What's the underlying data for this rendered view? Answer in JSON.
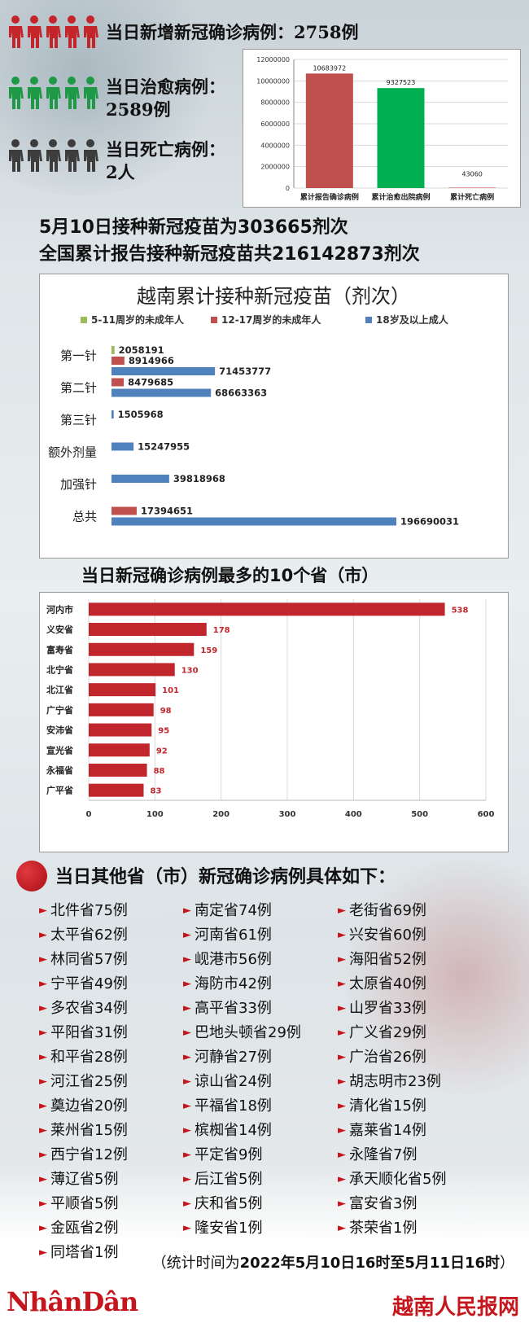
{
  "stats": {
    "new_cases": {
      "label": "当日新增新冠确诊病例：",
      "value": "2758例",
      "color": "#c4252b"
    },
    "recovered": {
      "label": "当日治愈病例：",
      "value": "2589例",
      "color": "#1e9a46"
    },
    "deaths": {
      "label": "当日死亡病例：",
      "value": "2人",
      "color": "#3d3d3d"
    }
  },
  "vaccine_headline": {
    "line1": "5月10日接种新冠疫苗为303665剂次",
    "line2": "全国累计报告接种新冠疫苗共216142873剂次"
  },
  "others": {
    "title": "当日其他省（市）新冠确诊病例具体如下：",
    "col1": [
      "北件省75例",
      "太平省62例",
      "林同省57例",
      "宁平省49例",
      "多农省34例",
      "平阳省31例",
      "和平省28例",
      "河江省25例",
      "奠边省20例",
      "莱州省15例",
      "西宁省12例",
      "薄辽省5例",
      "平顺省5例",
      "金瓯省2例",
      "同塔省1例"
    ],
    "col2": [
      "南定省74例",
      "河南省61例",
      "岘港市56例",
      "海防市42例",
      "高平省33例",
      "巴地头顿省29例",
      "河静省27例",
      "谅山省24例",
      "平福省18例",
      "槟椥省14例",
      "平定省9例",
      "后江省5例",
      "庆和省5例",
      "隆安省1例"
    ],
    "col3": [
      "老街省69例",
      "兴安省60例",
      "海阳省52例",
      "太原省40例",
      "山罗省33例",
      "广义省29例",
      "广治省26例",
      "胡志明市23例",
      "清化省15例",
      "嘉莱省14例",
      "永隆省7例",
      "承天顺化省5例",
      "富安省3例",
      "茶荣省1例"
    ],
    "marker": "►"
  },
  "stat_time": {
    "prefix": "（统计时间为",
    "value": "2022年5月10日16时至5月11日16时",
    "suffix": "）"
  },
  "footer": {
    "logo": "NhânDân",
    "right": "越南人民报网"
  },
  "chart_data": [
    {
      "type": "bar",
      "categories": [
        "累计报告确诊病例",
        "累计治愈出院病例",
        "累计死亡病例"
      ],
      "values": [
        10683972,
        9327523,
        43060
      ],
      "colors": [
        "#c0504d",
        "#00b050",
        "#c0504d"
      ],
      "ylim": [
        0,
        12000000
      ],
      "yticks": [
        0,
        2000000,
        4000000,
        6000000,
        8000000,
        10000000,
        12000000
      ],
      "grid": true
    },
    {
      "type": "bar",
      "orientation": "horizontal",
      "title": "越南累计接种新冠疫苗（剂次）",
      "categories": [
        "第一针",
        "第二针",
        "第三针",
        "额外剂量",
        "加强针",
        "总共"
      ],
      "legend_position": "top",
      "series": [
        {
          "name": "5-11周岁的未成年人",
          "color": "#9bbb59",
          "values": [
            2058191,
            null,
            null,
            null,
            null,
            null
          ]
        },
        {
          "name": "12-17周岁的未成年人",
          "color": "#c0504d",
          "values": [
            8914966,
            8479685,
            null,
            null,
            null,
            17394651
          ]
        },
        {
          "name": "18岁及以上成人",
          "color": "#4f81bd",
          "values": [
            71453777,
            68663363,
            1505968,
            15247955,
            39818968,
            196690031
          ]
        }
      ]
    },
    {
      "type": "bar",
      "orientation": "horizontal",
      "title": "当日新冠确诊病例最多的10个省（市）",
      "categories": [
        "河内市",
        "义安省",
        "富寿省",
        "北宁省",
        "北江省",
        "广宁省",
        "安沛省",
        "宣光省",
        "永福省",
        "广平省"
      ],
      "values": [
        538,
        178,
        159,
        130,
        101,
        98,
        95,
        92,
        88,
        83
      ],
      "color": "#c0262c",
      "xlim": [
        0,
        600
      ],
      "xticks": [
        0,
        100,
        200,
        300,
        400,
        500,
        600
      ],
      "grid": true
    }
  ]
}
